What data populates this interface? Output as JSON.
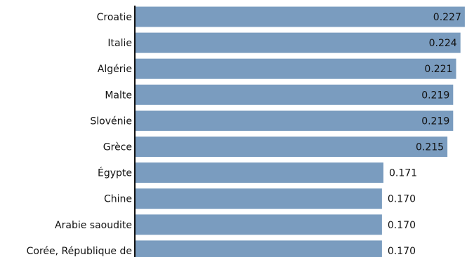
{
  "chart_data": {
    "type": "bar",
    "orientation": "horizontal",
    "categories": [
      "Croatie",
      "Italie",
      "Algérie",
      "Malte",
      "Slovénie",
      "Grèce",
      "Égypte",
      "Chine",
      "Arabie saoudite",
      "Corée, République de"
    ],
    "values": [
      0.227,
      0.224,
      0.221,
      0.219,
      0.219,
      0.215,
      0.171,
      0.17,
      0.17,
      0.17
    ],
    "value_labels": [
      "0.227",
      "0.224",
      "0.221",
      "0.219",
      "0.219",
      "0.215",
      "0.171",
      "0.170",
      "0.170",
      "0.170"
    ],
    "title": "",
    "xlabel": "",
    "ylabel": "",
    "xlim": [
      0,
      0.2285
    ],
    "grid": false,
    "legend": "none",
    "colors": {
      "bar": "#7a9cbf",
      "axis": "#111111",
      "text": "#111111",
      "background": "#ffffff"
    }
  }
}
